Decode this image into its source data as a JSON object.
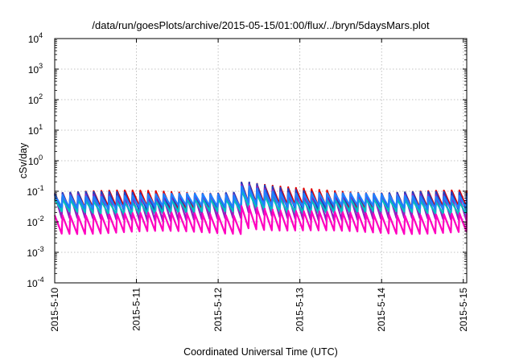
{
  "chart_data": {
    "type": "line",
    "title": "/data/run/goesPlots/archive/2015-05-15/01:00/flux/../bryn/5daysMars.plot",
    "xlabel": "Coordinated Universal Time (UTC)",
    "ylabel": "cSv/day",
    "x_range": [
      "2015-05-10T00:00",
      "2015-05-15T01:00"
    ],
    "y_scale": "log",
    "ylim": [
      0.0001,
      10000
    ],
    "grid": true,
    "x_ticks": [
      "2015-5-10",
      "2015-5-11",
      "2015-5-12",
      "2015-5-13",
      "2015-5-14",
      "2015-5-15"
    ],
    "y_ticks": [
      {
        "base": "10",
        "exp": "-4",
        "value": 0.0001
      },
      {
        "base": "10",
        "exp": "-3",
        "value": 0.001
      },
      {
        "base": "10",
        "exp": "-2",
        "value": 0.01
      },
      {
        "base": "10",
        "exp": "-1",
        "value": 0.1
      },
      {
        "base": "10",
        "exp": "0",
        "value": 1
      },
      {
        "base": "10",
        "exp": "1",
        "value": 10
      },
      {
        "base": "10",
        "exp": "2",
        "value": 100
      },
      {
        "base": "10",
        "exp": "3",
        "value": 1000
      },
      {
        "base": "10",
        "exp": "4",
        "value": 10000
      }
    ],
    "series_style": [
      {
        "color": "#e00000",
        "peak": 0.095,
        "trough": 0.028
      },
      {
        "color": "#2040c0",
        "peak": 0.085,
        "trough": 0.022
      },
      {
        "color": "#9020c0",
        "peak": 0.07,
        "trough": 0.012
      },
      {
        "color": "#00c0c0",
        "peak": 0.05,
        "trough": 0.02
      },
      {
        "color": "#2080ff",
        "peak": 0.075,
        "trough": 0.03
      },
      {
        "color": "#ff00c0",
        "peak": 0.018,
        "trough": 0.0045
      }
    ],
    "cycles_per_day": 10.5,
    "event": {
      "time": "2015-05-12T06:00",
      "peak_multiplier": 2.2
    }
  }
}
